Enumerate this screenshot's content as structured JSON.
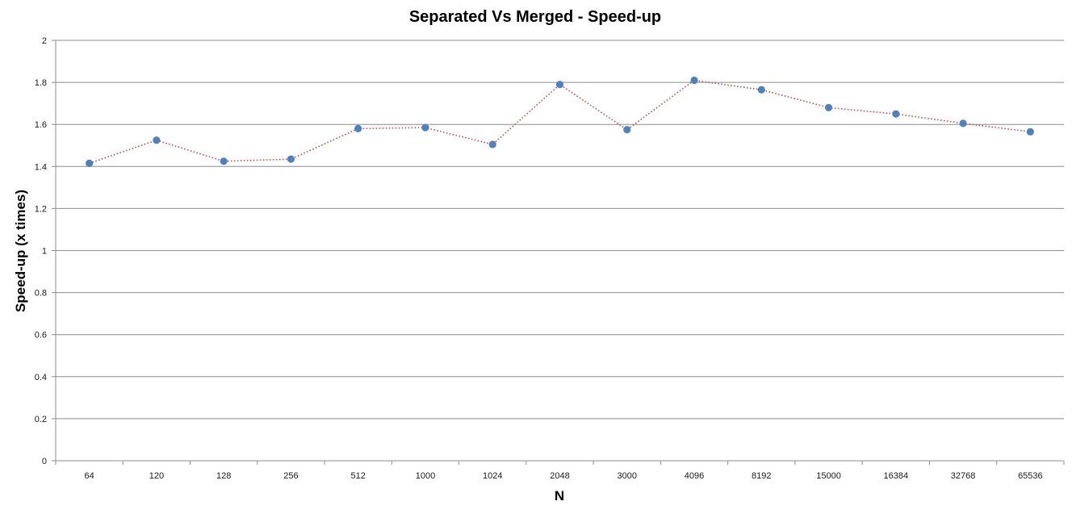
{
  "chart_data": {
    "type": "line",
    "title": "Separated Vs Merged - Speed-up",
    "xlabel": "N",
    "ylabel": "Speed-up  (x times)",
    "categories": [
      "64",
      "120",
      "128",
      "256",
      "512",
      "1000",
      "1024",
      "2048",
      "3000",
      "4096",
      "8192",
      "15000",
      "16384",
      "32768",
      "65536"
    ],
    "series": [
      {
        "values": [
          1.415,
          1.525,
          1.425,
          1.435,
          1.58,
          1.585,
          1.505,
          1.79,
          1.575,
          1.81,
          1.765,
          1.68,
          1.65,
          1.605,
          1.565
        ]
      }
    ],
    "ylim": [
      0,
      2
    ],
    "yticks": [
      "0",
      "0.2",
      "0.4",
      "0.6",
      "0.8",
      "1",
      "1.2",
      "1.4",
      "1.6",
      "1.8",
      "2"
    ],
    "grid": true,
    "legend": "none",
    "colors": {
      "marker": "#4f81bd",
      "line": "#c0504d",
      "grid": "#8c8c8c"
    }
  }
}
